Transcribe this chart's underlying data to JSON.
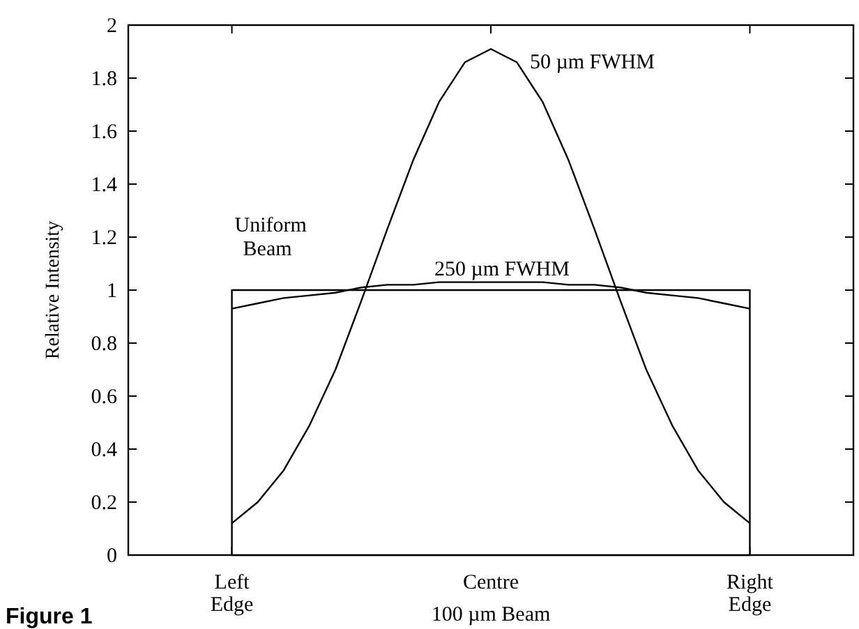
{
  "chart_data": {
    "type": "line",
    "xlabel": "100 µm Beam",
    "ylabel": "Relative Intensity",
    "categories": [
      null,
      null,
      null,
      null,
      "Left Edge",
      null,
      null,
      null,
      null,
      null,
      null,
      null,
      null,
      null,
      "Centre",
      null,
      null,
      null,
      null,
      null,
      null,
      null,
      null,
      null,
      "Right Edge",
      null,
      null,
      null,
      null
    ],
    "ylim": [
      0,
      2
    ],
    "yticks": [
      0,
      0.2,
      0.4,
      0.6,
      0.8,
      1,
      1.2,
      1.4,
      1.6,
      1.8,
      2
    ],
    "grid": false,
    "marker": "none",
    "line_style": "solid",
    "annotations": [
      "Figure 1"
    ],
    "series": [
      {
        "name": "Uniform Beam",
        "type": "area",
        "color": "#000000",
        "values": [
          null,
          null,
          null,
          null,
          1,
          1,
          1,
          1,
          1,
          1,
          1,
          1,
          1,
          1,
          1,
          1,
          1,
          1,
          1,
          1,
          1,
          1,
          1,
          1,
          1,
          null,
          null,
          null,
          null
        ]
      },
      {
        "name": "250 µm FWHM",
        "color": "#000000",
        "values": [
          null,
          null,
          null,
          null,
          0.93,
          0.95,
          0.97,
          0.98,
          0.99,
          1.01,
          1.02,
          1.02,
          1.03,
          1.03,
          1.03,
          1.03,
          1.03,
          1.02,
          1.02,
          1.01,
          0.99,
          0.98,
          0.97,
          0.95,
          0.93,
          null,
          null,
          null,
          null
        ]
      },
      {
        "name": "50 µm FWHM",
        "color": "#000000",
        "values": [
          null,
          null,
          null,
          null,
          0.12,
          0.2,
          0.32,
          0.49,
          0.7,
          0.96,
          1.23,
          1.49,
          1.71,
          1.86,
          1.91,
          1.86,
          1.71,
          1.49,
          1.23,
          0.96,
          0.7,
          0.49,
          0.32,
          0.2,
          0.12,
          null,
          null,
          null,
          null
        ]
      }
    ]
  }
}
